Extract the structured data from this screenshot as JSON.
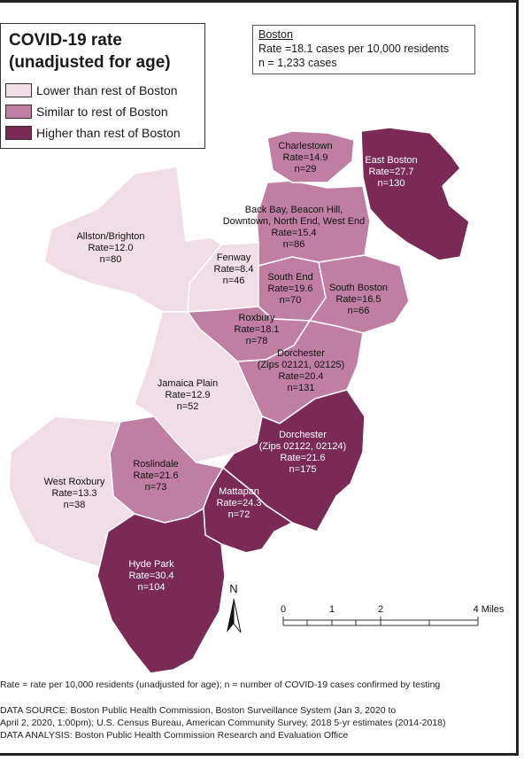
{
  "legend": {
    "title_line1": "COVID-19 rate",
    "title_line2": "(unadjusted for age)",
    "items": [
      {
        "label": "Lower than rest of Boston",
        "color": "#f0dde6"
      },
      {
        "label": "Similar to rest of Boston",
        "color": "#c07fa2"
      },
      {
        "label": "Higher than rest of Boston",
        "color": "#7a2a55"
      }
    ]
  },
  "boston_summary": {
    "title": "Boston",
    "rate": "Rate =18.1 cases per 10,000 residents",
    "n": "n = 1,233 cases"
  },
  "neighborhoods": [
    {
      "name": "Charlestown",
      "rate": "Rate=14.9",
      "n": "n=29",
      "category": "similar"
    },
    {
      "name": "East Boston",
      "rate": "Rate=27.7",
      "n": "n=130",
      "category": "higher"
    },
    {
      "name": "Back Bay, Beacon Hill,",
      "name2": "Downtown, North End, West End",
      "rate": "Rate=15.4",
      "n": "n=86",
      "category": "similar"
    },
    {
      "name": "Allston/Brighton",
      "rate": "Rate=12.0",
      "n": "n=80",
      "category": "lower"
    },
    {
      "name": "Fenway",
      "rate": "Rate=8.4",
      "n": "n=46",
      "category": "lower"
    },
    {
      "name": "South End",
      "rate": "Rate=19.6",
      "n": "n=70",
      "category": "similar"
    },
    {
      "name": "South Boston",
      "rate": "Rate=16.5",
      "n": "n=66",
      "category": "similar"
    },
    {
      "name": "Roxbury",
      "rate": "Rate=18.1",
      "n": "n=78",
      "category": "similar"
    },
    {
      "name": "Dorchester",
      "name2": "(Zips 02121, 02125)",
      "rate": "Rate=20.4",
      "n": "n=131",
      "category": "similar"
    },
    {
      "name": "Jamaica Plain",
      "rate": "Rate=12.9",
      "n": "n=52",
      "category": "lower"
    },
    {
      "name": "Dorchester",
      "name2": "(Zips 02122, 02124)",
      "rate": "Rate=21.6",
      "n": "n=175",
      "category": "higher"
    },
    {
      "name": "Roslindale",
      "rate": "Rate=21.6",
      "n": "n=73",
      "category": "similar"
    },
    {
      "name": "West Roxbury",
      "rate": "Rate=13.3",
      "n": "n=38",
      "category": "lower"
    },
    {
      "name": "Mattapan",
      "rate": "Rate=24.3",
      "n": "n=72",
      "category": "higher"
    },
    {
      "name": "Hyde Park",
      "rate": "Rate=30.4",
      "n": "n=104",
      "category": "higher"
    }
  ],
  "north_arrow": "N",
  "scale_bar": {
    "ticks": [
      "0",
      "1",
      "2",
      "4 Miles"
    ]
  },
  "footnotes": {
    "definition": "Rate = rate per 10,000 residents (unadjusted for age); n = number of COVID-19 cases confirmed by testing",
    "source_line1": "DATA SOURCE: Boston Public Health Commission, Boston Surveillance System (Jan 3, 2020 to",
    "source_line2": "April 2, 2020, 1:00pm); U.S. Census Bureau, American Community Survey, 2018 5-yr estimates (2014-2018)",
    "analysis": "DATA ANALYSIS: Boston Public Health Commission Research and Evaluation Office"
  }
}
